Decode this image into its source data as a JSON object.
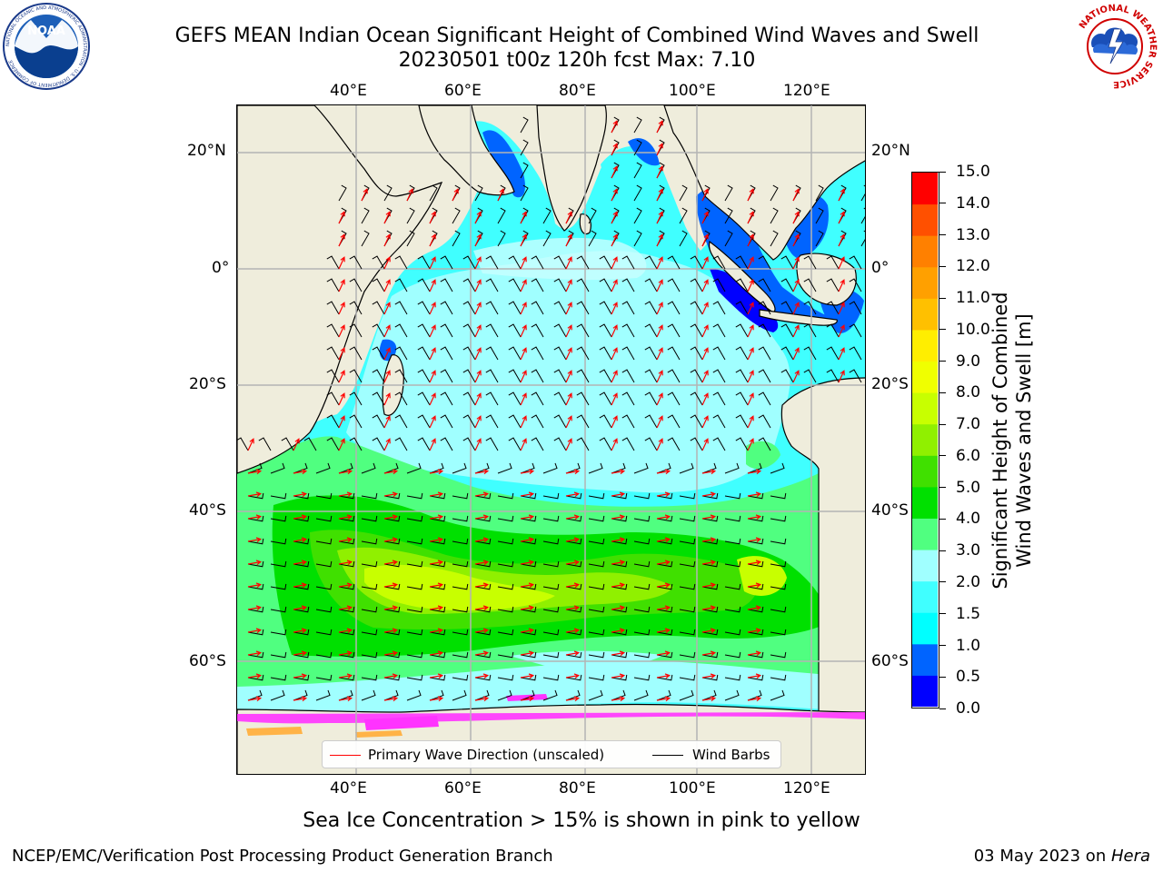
{
  "title": {
    "line1": "GEFS MEAN Indian Ocean Significant Height of Combined Wind Waves and Swell",
    "line2": "20230501 t00z 120h fcst   Max: 7.10"
  },
  "logos": {
    "left_icon": "noaa-logo-icon",
    "right_icon": "nws-logo-icon",
    "left_ring_text": "NATIONAL OCEANIC AND ATMOSPHERIC ADMINISTRATION · U.S. DEPARTMENT OF COMMERCE",
    "left_center_text": "NOAA",
    "right_ring_text": "NATIONAL WEATHER SERVICE"
  },
  "map": {
    "lon_ticks": [
      "40°E",
      "60°E",
      "80°E",
      "100°E",
      "120°E"
    ],
    "lat_ticks": [
      "20°N",
      "0°",
      "20°S",
      "40°S",
      "60°S"
    ],
    "lon_range": [
      20,
      130
    ],
    "lat_range": [
      -74,
      28
    ],
    "colors": {
      "land": "#efeddc",
      "grid": "#b4b4b4",
      "barb": "#000000",
      "arrow": "#ff0000",
      "ice_pink": "#ff33ff",
      "ice_yellow": "#ffb347"
    }
  },
  "legend": {
    "arrow_label": "Primary Wave Direction (unscaled)",
    "barb_label": "Wind Barbs",
    "arrow_color": "#ff0000",
    "barb_color": "#000000"
  },
  "colorbar": {
    "title_line1": "Significant Height of Combined",
    "title_line2": "Wind Waves and Swell [m]",
    "tick_labels": [
      "0.0",
      "0.5",
      "1.0",
      "1.5",
      "2.0",
      "3.0",
      "4.0",
      "5.0",
      "6.0",
      "7.0",
      "8.0",
      "9.0",
      "10.0",
      "11.0",
      "12.0",
      "13.0",
      "14.0",
      "15.0"
    ],
    "colors": [
      "#0000ff",
      "#0064ff",
      "#00ffff",
      "#40ffff",
      "#a0ffff",
      "#50ff80",
      "#00e000",
      "#40e000",
      "#90f000",
      "#c8ff00",
      "#f0ff00",
      "#ffee00",
      "#ffc000",
      "#ffa000",
      "#ff8000",
      "#ff5000",
      "#ff0000"
    ]
  },
  "caption": "Sea Ice Concentration > 15% is shown in pink to yellow",
  "footer": {
    "left": "NCEP/EMC/Verification Post Processing Product Generation Branch",
    "right_date": "03 May 2023 on ",
    "right_host": "Hera"
  }
}
